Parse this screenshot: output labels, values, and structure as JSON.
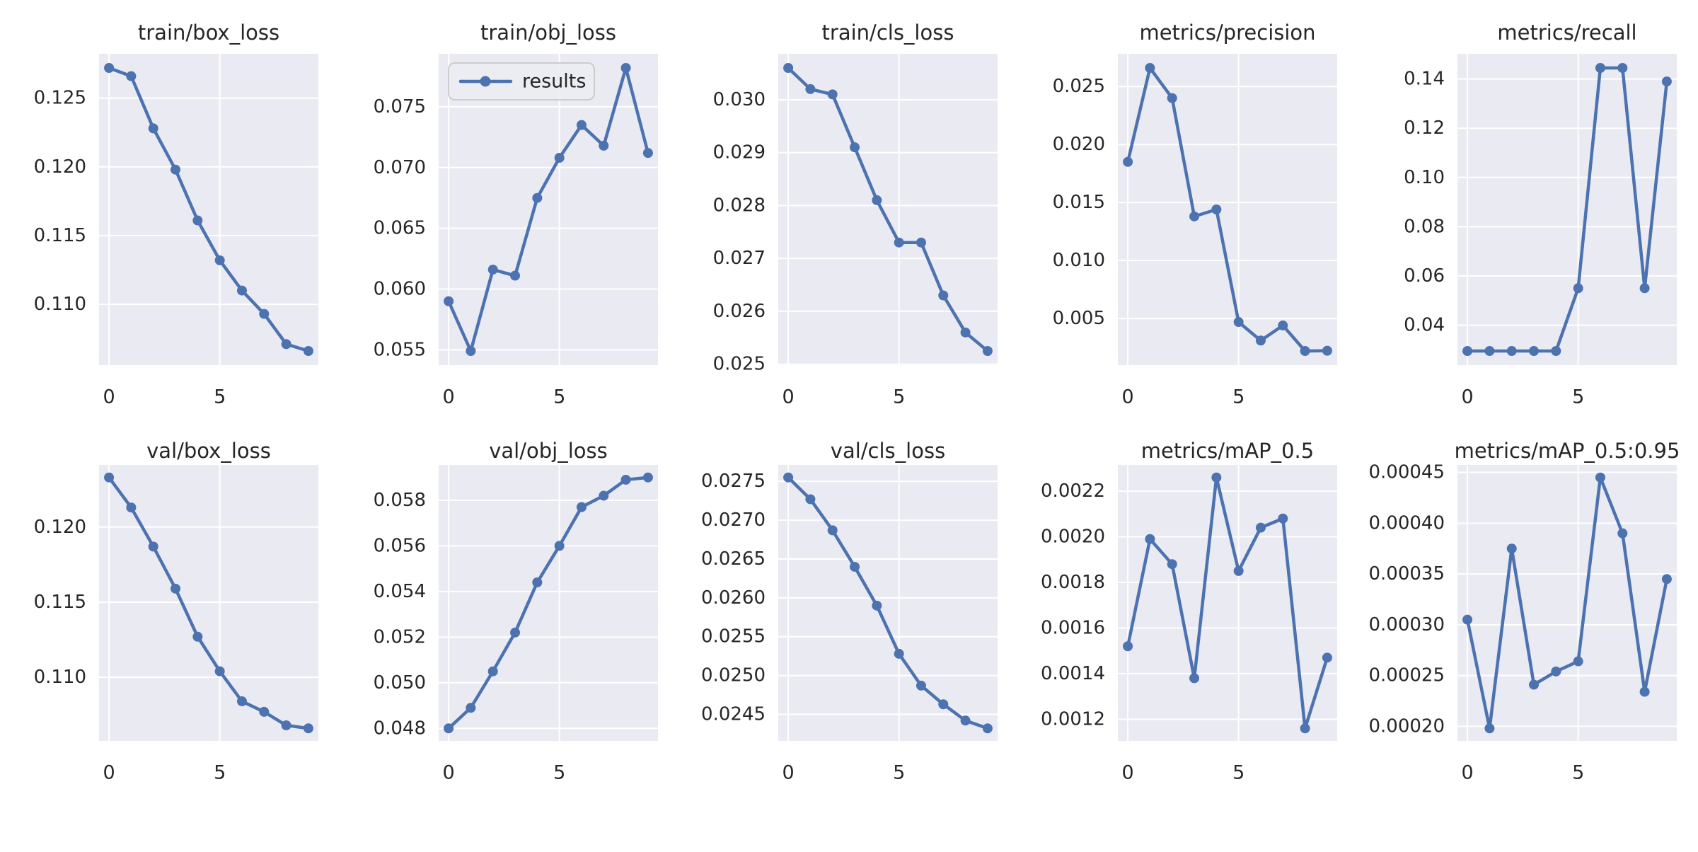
{
  "figure": {
    "background_color": "#ffffff",
    "axes_background_color": "#eaeaf2",
    "grid_color": "#ffffff",
    "line_color": "#4c72b0",
    "text_color": "#262626",
    "legend_label": "results",
    "legend_frame_color": "#cccccc",
    "legend_fill_color": "#ececf3"
  },
  "chart_data": [
    {
      "type": "line",
      "title": "train/box_loss",
      "x": [
        0,
        1,
        2,
        3,
        4,
        5,
        6,
        7,
        8,
        9
      ],
      "y": [
        0.1272,
        0.1266,
        0.1228,
        0.1198,
        0.1161,
        0.1132,
        0.111,
        0.1093,
        0.1071,
        0.1066
      ],
      "ytick_values": [
        0.11,
        0.115,
        0.12,
        0.125
      ],
      "ytick_labels": [
        "0.110",
        "0.115",
        "0.120",
        "0.125"
      ],
      "xtick_values": [
        0,
        5
      ],
      "xtick_labels": [
        "0",
        "5"
      ],
      "grid": true,
      "legend": false
    },
    {
      "type": "line",
      "title": "train/obj_loss",
      "x": [
        0,
        1,
        2,
        3,
        4,
        5,
        6,
        7,
        8,
        9
      ],
      "y": [
        0.059,
        0.0549,
        0.0616,
        0.0611,
        0.0675,
        0.0708,
        0.0735,
        0.0718,
        0.0782,
        0.0712
      ],
      "ytick_values": [
        0.055,
        0.06,
        0.065,
        0.07,
        0.075
      ],
      "ytick_labels": [
        "0.055",
        "0.060",
        "0.065",
        "0.070",
        "0.075"
      ],
      "xtick_values": [
        0,
        5
      ],
      "xtick_labels": [
        "0",
        "5"
      ],
      "grid": true,
      "legend": true,
      "legend_position": "upper left"
    },
    {
      "type": "line",
      "title": "train/cls_loss",
      "x": [
        0,
        1,
        2,
        3,
        4,
        5,
        6,
        7,
        8,
        9
      ],
      "y": [
        0.0306,
        0.0302,
        0.0301,
        0.0291,
        0.0281,
        0.0273,
        0.0273,
        0.0263,
        0.0256,
        0.02525
      ],
      "ytick_values": [
        0.025,
        0.026,
        0.027,
        0.028,
        0.029,
        0.03
      ],
      "ytick_labels": [
        "0.025",
        "0.026",
        "0.027",
        "0.028",
        "0.029",
        "0.030"
      ],
      "xtick_values": [
        0,
        5
      ],
      "xtick_labels": [
        "0",
        "5"
      ],
      "grid": true,
      "legend": false
    },
    {
      "type": "line",
      "title": "metrics/precision",
      "x": [
        0,
        1,
        2,
        3,
        4,
        5,
        6,
        7,
        8,
        9
      ],
      "y": [
        0.0185,
        0.0266,
        0.024,
        0.0138,
        0.0144,
        0.0047,
        0.0031,
        0.0044,
        0.0022,
        0.00222
      ],
      "ytick_values": [
        0.005,
        0.01,
        0.015,
        0.02,
        0.025
      ],
      "ytick_labels": [
        "0.005",
        "0.010",
        "0.015",
        "0.020",
        "0.025"
      ],
      "xtick_values": [
        0,
        5
      ],
      "xtick_labels": [
        "0",
        "5"
      ],
      "grid": true,
      "legend": false
    },
    {
      "type": "line",
      "title": "metrics/recall",
      "x": [
        0,
        1,
        2,
        3,
        4,
        5,
        6,
        7,
        8,
        9
      ],
      "y": [
        0.0295,
        0.0295,
        0.0295,
        0.0295,
        0.0295,
        0.055,
        0.1445,
        0.1445,
        0.055,
        0.139
      ],
      "ytick_values": [
        0.04,
        0.06,
        0.08,
        0.1,
        0.12,
        0.14
      ],
      "ytick_labels": [
        "0.04",
        "0.06",
        "0.08",
        "0.10",
        "0.12",
        "0.14"
      ],
      "xtick_values": [
        0,
        5
      ],
      "xtick_labels": [
        "0",
        "5"
      ],
      "grid": true,
      "legend": false
    },
    {
      "type": "line",
      "title": "val/box_loss",
      "x": [
        0,
        1,
        2,
        3,
        4,
        5,
        6,
        7,
        8,
        9
      ],
      "y": [
        0.1233,
        0.1213,
        0.1187,
        0.1159,
        0.1127,
        0.1104,
        0.1084,
        0.1077,
        0.1068,
        0.1066
      ],
      "ytick_values": [
        0.11,
        0.115,
        0.12
      ],
      "ytick_labels": [
        "0.110",
        "0.115",
        "0.120"
      ],
      "xtick_values": [
        0,
        5
      ],
      "xtick_labels": [
        "0",
        "5"
      ],
      "grid": true,
      "legend": false
    },
    {
      "type": "line",
      "title": "val/obj_loss",
      "x": [
        0,
        1,
        2,
        3,
        4,
        5,
        6,
        7,
        8,
        9
      ],
      "y": [
        0.048,
        0.0489,
        0.0505,
        0.0522,
        0.0544,
        0.056,
        0.0577,
        0.0582,
        0.0589,
        0.059
      ],
      "ytick_values": [
        0.048,
        0.05,
        0.052,
        0.054,
        0.056,
        0.058
      ],
      "ytick_labels": [
        "0.048",
        "0.050",
        "0.052",
        "0.054",
        "0.056",
        "0.058"
      ],
      "xtick_values": [
        0,
        5
      ],
      "xtick_labels": [
        "0",
        "5"
      ],
      "grid": true,
      "legend": false
    },
    {
      "type": "line",
      "title": "val/cls_loss",
      "x": [
        0,
        1,
        2,
        3,
        4,
        5,
        6,
        7,
        8,
        9
      ],
      "y": [
        0.02755,
        0.02727,
        0.02687,
        0.0264,
        0.0259,
        0.02528,
        0.02487,
        0.02463,
        0.02442,
        0.02432
      ],
      "ytick_values": [
        0.0245,
        0.025,
        0.0255,
        0.026,
        0.0265,
        0.027,
        0.0275
      ],
      "ytick_labels": [
        "0.0245",
        "0.0250",
        "0.0255",
        "0.0260",
        "0.0265",
        "0.0270",
        "0.0275"
      ],
      "xtick_values": [
        0,
        5
      ],
      "xtick_labels": [
        "0",
        "5"
      ],
      "grid": true,
      "legend": false
    },
    {
      "type": "line",
      "title": "metrics/mAP_0.5",
      "x": [
        0,
        1,
        2,
        3,
        4,
        5,
        6,
        7,
        8,
        9
      ],
      "y": [
        0.00152,
        0.00199,
        0.00188,
        0.00138,
        0.00226,
        0.00185,
        0.00204,
        0.00208,
        0.00116,
        0.00147
      ],
      "ytick_values": [
        0.0012,
        0.0014,
        0.0016,
        0.0018,
        0.002,
        0.0022
      ],
      "ytick_labels": [
        "0.0012",
        "0.0014",
        "0.0016",
        "0.0018",
        "0.0020",
        "0.0022"
      ],
      "xtick_values": [
        0,
        5
      ],
      "xtick_labels": [
        "0",
        "5"
      ],
      "grid": true,
      "legend": false
    },
    {
      "type": "line",
      "title": "metrics/mAP_0.5:0.95",
      "x": [
        0,
        1,
        2,
        3,
        4,
        5,
        6,
        7,
        8,
        9
      ],
      "y": [
        0.000305,
        0.000198,
        0.000375,
        0.000241,
        0.000254,
        0.000264,
        0.000445,
        0.00039,
        0.000234,
        0.000345
      ],
      "ytick_values": [
        0.0002,
        0.00025,
        0.0003,
        0.00035,
        0.0004,
        0.00045
      ],
      "ytick_labels": [
        "0.00020",
        "0.00025",
        "0.00030",
        "0.00035",
        "0.00040",
        "0.00045"
      ],
      "xtick_values": [
        0,
        5
      ],
      "xtick_labels": [
        "0",
        "5"
      ],
      "grid": true,
      "legend": false
    }
  ]
}
